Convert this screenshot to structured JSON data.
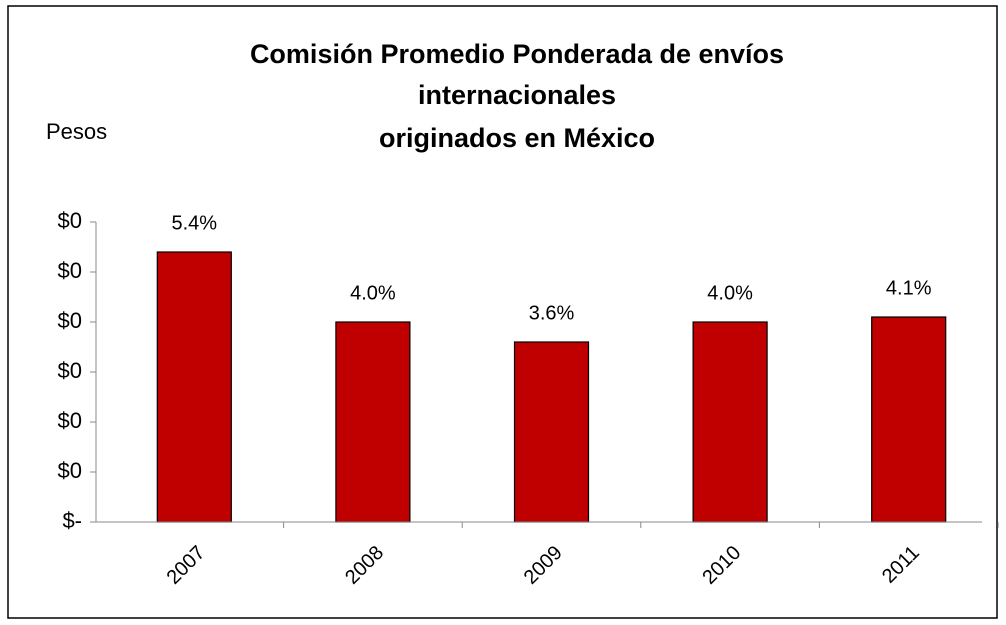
{
  "chart_data": {
    "type": "bar",
    "title": [
      "Comisión Promedio Ponderada de envíos",
      "internacionales",
      "originados en México"
    ],
    "y_label": "Pesos",
    "categories": [
      "2007",
      "2008",
      "2009",
      "2010",
      "2011"
    ],
    "values": [
      0.054,
      0.04,
      0.036,
      0.04,
      0.041
    ],
    "value_labels": [
      "5.4%",
      "4.0%",
      "3.6%",
      "4.0%",
      "4.1%"
    ],
    "color": "#c00000",
    "ylim": [
      0,
      0.06
    ],
    "yticks": [
      {
        "value": 0,
        "label": "$-"
      },
      {
        "value": 0.01,
        "label": "$0"
      },
      {
        "value": 0.02,
        "label": "$0"
      },
      {
        "value": 0.03,
        "label": "$0"
      },
      {
        "value": 0.04,
        "label": "$0"
      },
      {
        "value": 0.05,
        "label": "$0"
      },
      {
        "value": 0.06,
        "label": "$0"
      }
    ],
    "grid": false
  }
}
